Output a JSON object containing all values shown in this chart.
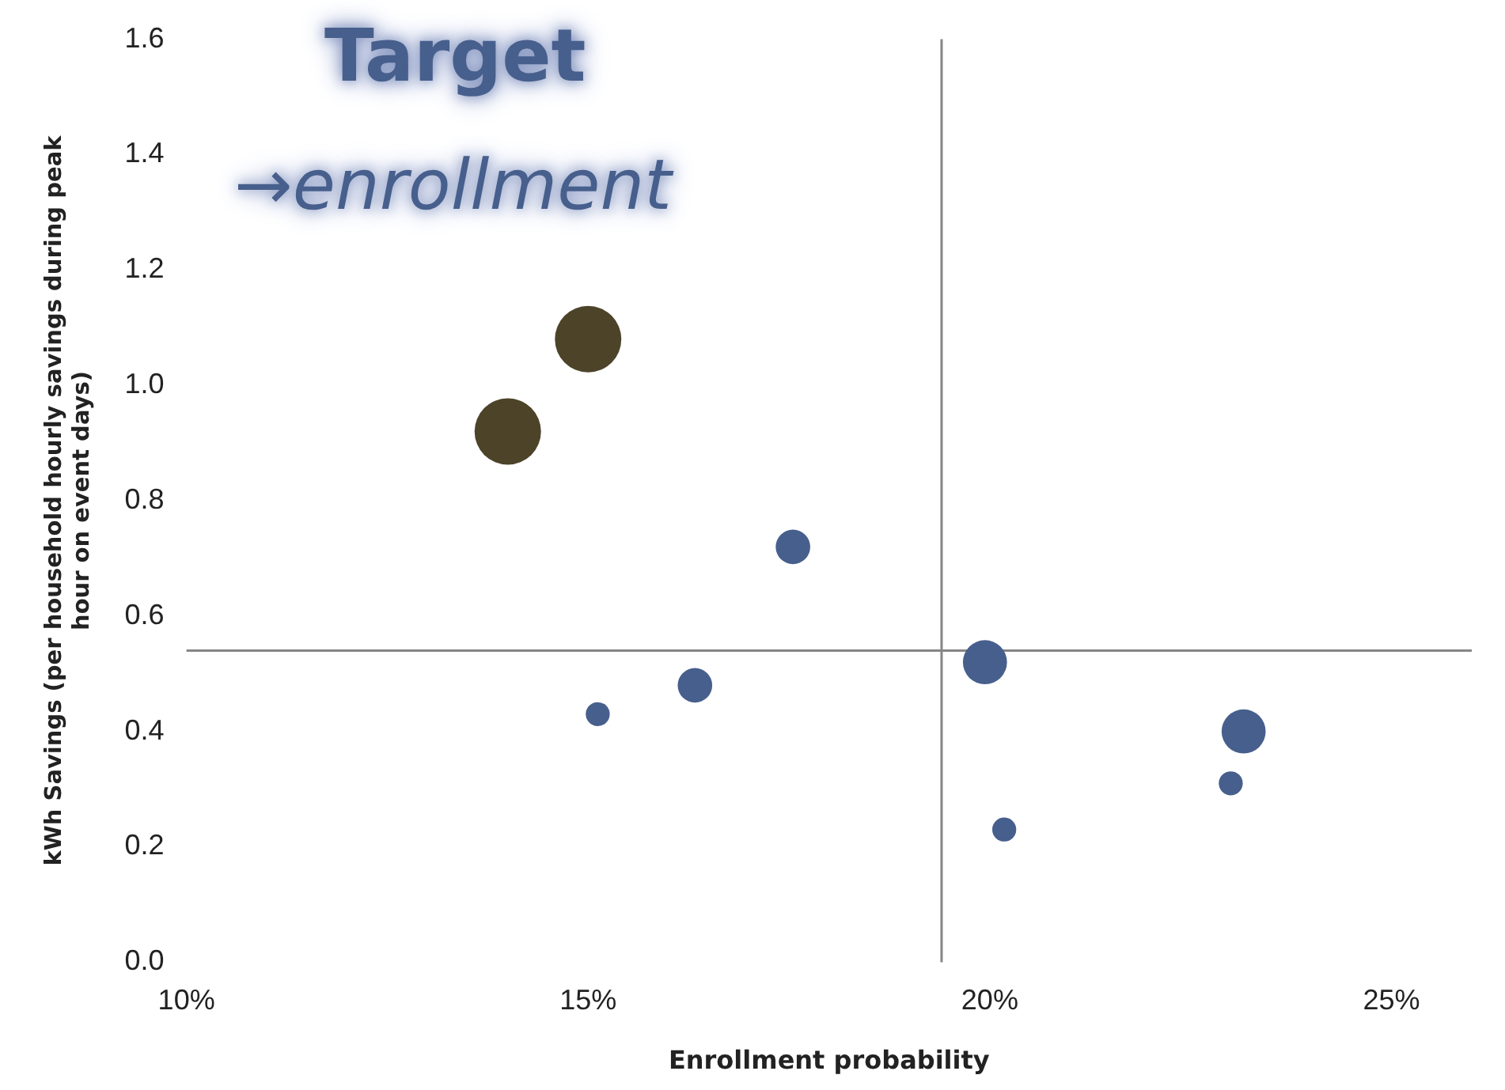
{
  "chart_data": {
    "type": "bubble",
    "xlabel": "Enrollment probability",
    "ylabel": "kWh Savings (per household hourly savings during peak hour on event days)",
    "x": [
      14.0,
      15.0,
      17.55,
      15.12,
      16.33,
      19.94,
      20.18,
      23.0,
      23.16
    ],
    "values": [
      0.92,
      1.08,
      0.72,
      0.43,
      0.48,
      0.52,
      0.23,
      0.31,
      0.4
    ],
    "sizes": [
      1,
      1,
      0.27,
      0.13,
      0.27,
      0.44,
      0.13,
      0.13,
      0.44
    ],
    "colors": [
      "#4c4329",
      "#4c4329",
      "#475f8c",
      "#475f8c",
      "#475f8c",
      "#475f8c",
      "#475f8c",
      "#475f8c",
      "#475f8c"
    ],
    "xlim": [
      10,
      26
    ],
    "xticks": [
      {
        "value": 10,
        "label": "10%"
      },
      {
        "value": 15,
        "label": "15%"
      },
      {
        "value": 20,
        "label": "20%"
      },
      {
        "value": 25,
        "label": "25%"
      }
    ],
    "ylim": [
      0,
      1.6
    ],
    "yticks": [
      {
        "value": 0,
        "label": "0.0"
      },
      {
        "value": 0.2,
        "label": "0.2"
      },
      {
        "value": 0.4,
        "label": "0.4"
      },
      {
        "value": 0.6,
        "label": "0.6"
      },
      {
        "value": 0.8,
        "label": "0.8"
      },
      {
        "value": 1.0,
        "label": "1.0"
      },
      {
        "value": 1.2,
        "label": "1.2"
      },
      {
        "value": 1.4,
        "label": "1.4"
      },
      {
        "value": 1.6,
        "label": "1.6"
      }
    ],
    "ref_lines": [
      {
        "axis": "x",
        "value": 19.4,
        "color": "#868686"
      },
      {
        "axis": "y",
        "value": 0.54,
        "color": "#868686"
      }
    ],
    "annotations": [
      "Target",
      "→enrollment"
    ],
    "grid": false,
    "legend": false
  }
}
